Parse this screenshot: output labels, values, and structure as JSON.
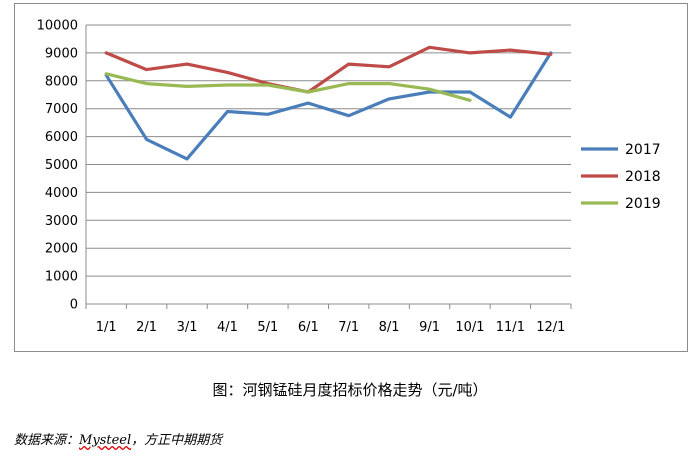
{
  "chart_data": {
    "type": "line",
    "categories": [
      "1/1",
      "2/1",
      "3/1",
      "4/1",
      "5/1",
      "6/1",
      "7/1",
      "8/1",
      "9/1",
      "10/1",
      "11/1",
      "12/1"
    ],
    "y_ticks": [
      "0",
      "1000",
      "2000",
      "3000",
      "4000",
      "5000",
      "6000",
      "7000",
      "8000",
      "9000",
      "10000"
    ],
    "ylim": [
      0,
      10000
    ],
    "grid": true,
    "legend_position": "right",
    "series": [
      {
        "name": "2017",
        "color": "#4a7ebb",
        "values": [
          8200,
          5900,
          5200,
          6900,
          6800,
          7200,
          6750,
          7350,
          7600,
          7600,
          6700,
          9000
        ]
      },
      {
        "name": "2018",
        "color": "#be4b48",
        "values": [
          9000,
          8400,
          8600,
          8300,
          7900,
          7600,
          8600,
          8500,
          9200,
          9000,
          9100,
          8950
        ]
      },
      {
        "name": "2019",
        "color": "#98b954",
        "values": [
          8250,
          7900,
          7800,
          7850,
          7850,
          7600,
          7900,
          7900,
          7700,
          7300,
          null,
          null
        ]
      }
    ]
  },
  "caption": "图：河钢锰硅月度招标价格走势（元/吨）",
  "source": {
    "prefix": "数据来源：",
    "name": "Mysteel",
    "suffix": "，方正中期期货"
  }
}
